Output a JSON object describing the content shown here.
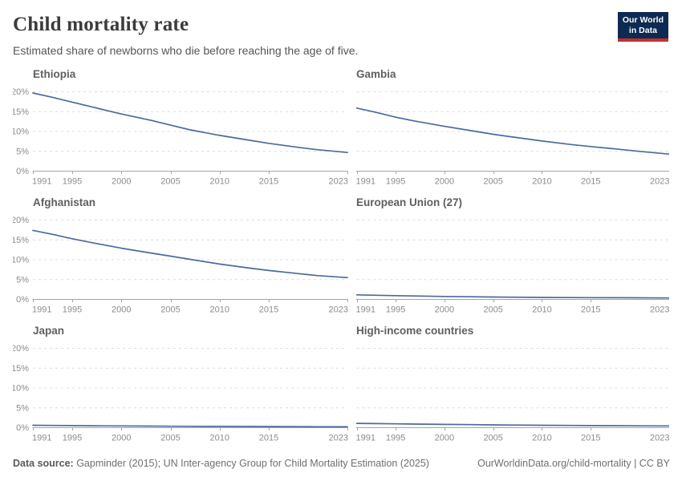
{
  "header": {
    "title": "Child mortality rate",
    "subtitle": "Estimated share of newborns who die before reaching the age of five.",
    "logo": {
      "line1": "Our World",
      "line2": "in Data"
    }
  },
  "colors": {
    "line": "#4C6A9C",
    "grid": "#dcdcdc",
    "axis": "#a5a5a5",
    "tick_label": "#8c8c8c",
    "panel_title": "#5f5f5f",
    "logo_bg": "#0d2a52",
    "logo_red": "#c5312c"
  },
  "chart_data": {
    "type": "line",
    "title": "Child mortality rate",
    "subtitle": "Estimated share of newborns who die before reaching the age of five.",
    "unit": "%",
    "x": [
      1991,
      1993,
      1995,
      1997,
      2000,
      2003,
      2005,
      2007,
      2010,
      2013,
      2015,
      2018,
      2020,
      2023
    ],
    "xticks": [
      1991,
      1995,
      2000,
      2005,
      2010,
      2015,
      2023
    ],
    "yticks": [
      0,
      5,
      10,
      15,
      20
    ],
    "ytick_labels": [
      "0%",
      "5%",
      "10%",
      "15%",
      "20%"
    ],
    "ylim": [
      0,
      21.5
    ],
    "xlim": [
      1991,
      2023
    ],
    "grid": "dashed-horizontal",
    "legend_position": "none",
    "panels": [
      {
        "title": "Ethiopia",
        "values": [
          19.7,
          18.6,
          17.4,
          16.2,
          14.4,
          12.8,
          11.6,
          10.4,
          9.0,
          7.8,
          7.0,
          6.0,
          5.4,
          4.7
        ]
      },
      {
        "title": "Gambia",
        "values": [
          15.9,
          14.8,
          13.6,
          12.6,
          11.3,
          10.1,
          9.3,
          8.6,
          7.6,
          6.7,
          6.2,
          5.5,
          5.0,
          4.3
        ]
      },
      {
        "title": "Afghanistan",
        "values": [
          17.4,
          16.4,
          15.3,
          14.3,
          12.9,
          11.7,
          10.9,
          10.1,
          8.9,
          7.9,
          7.3,
          6.5,
          6.0,
          5.5
        ]
      },
      {
        "title": "European Union (27)",
        "values": [
          1.15,
          1.05,
          0.95,
          0.87,
          0.75,
          0.66,
          0.6,
          0.56,
          0.5,
          0.47,
          0.45,
          0.42,
          0.4,
          0.37
        ]
      },
      {
        "title": "Japan",
        "values": [
          0.6,
          0.56,
          0.52,
          0.48,
          0.44,
          0.4,
          0.37,
          0.35,
          0.32,
          0.3,
          0.28,
          0.26,
          0.25,
          0.23
        ]
      },
      {
        "title": "High-income countries",
        "values": [
          1.1,
          1.03,
          0.97,
          0.91,
          0.83,
          0.76,
          0.7,
          0.66,
          0.6,
          0.56,
          0.53,
          0.5,
          0.47,
          0.44
        ]
      }
    ]
  },
  "footer": {
    "datasource_label": "Data source:",
    "datasource_text": " Gapminder (2015); UN Inter-agency Group for Child Mortality Estimation (2025)",
    "url": "OurWorldinData.org/child-mortality",
    "separator": " | ",
    "license": "CC BY"
  }
}
